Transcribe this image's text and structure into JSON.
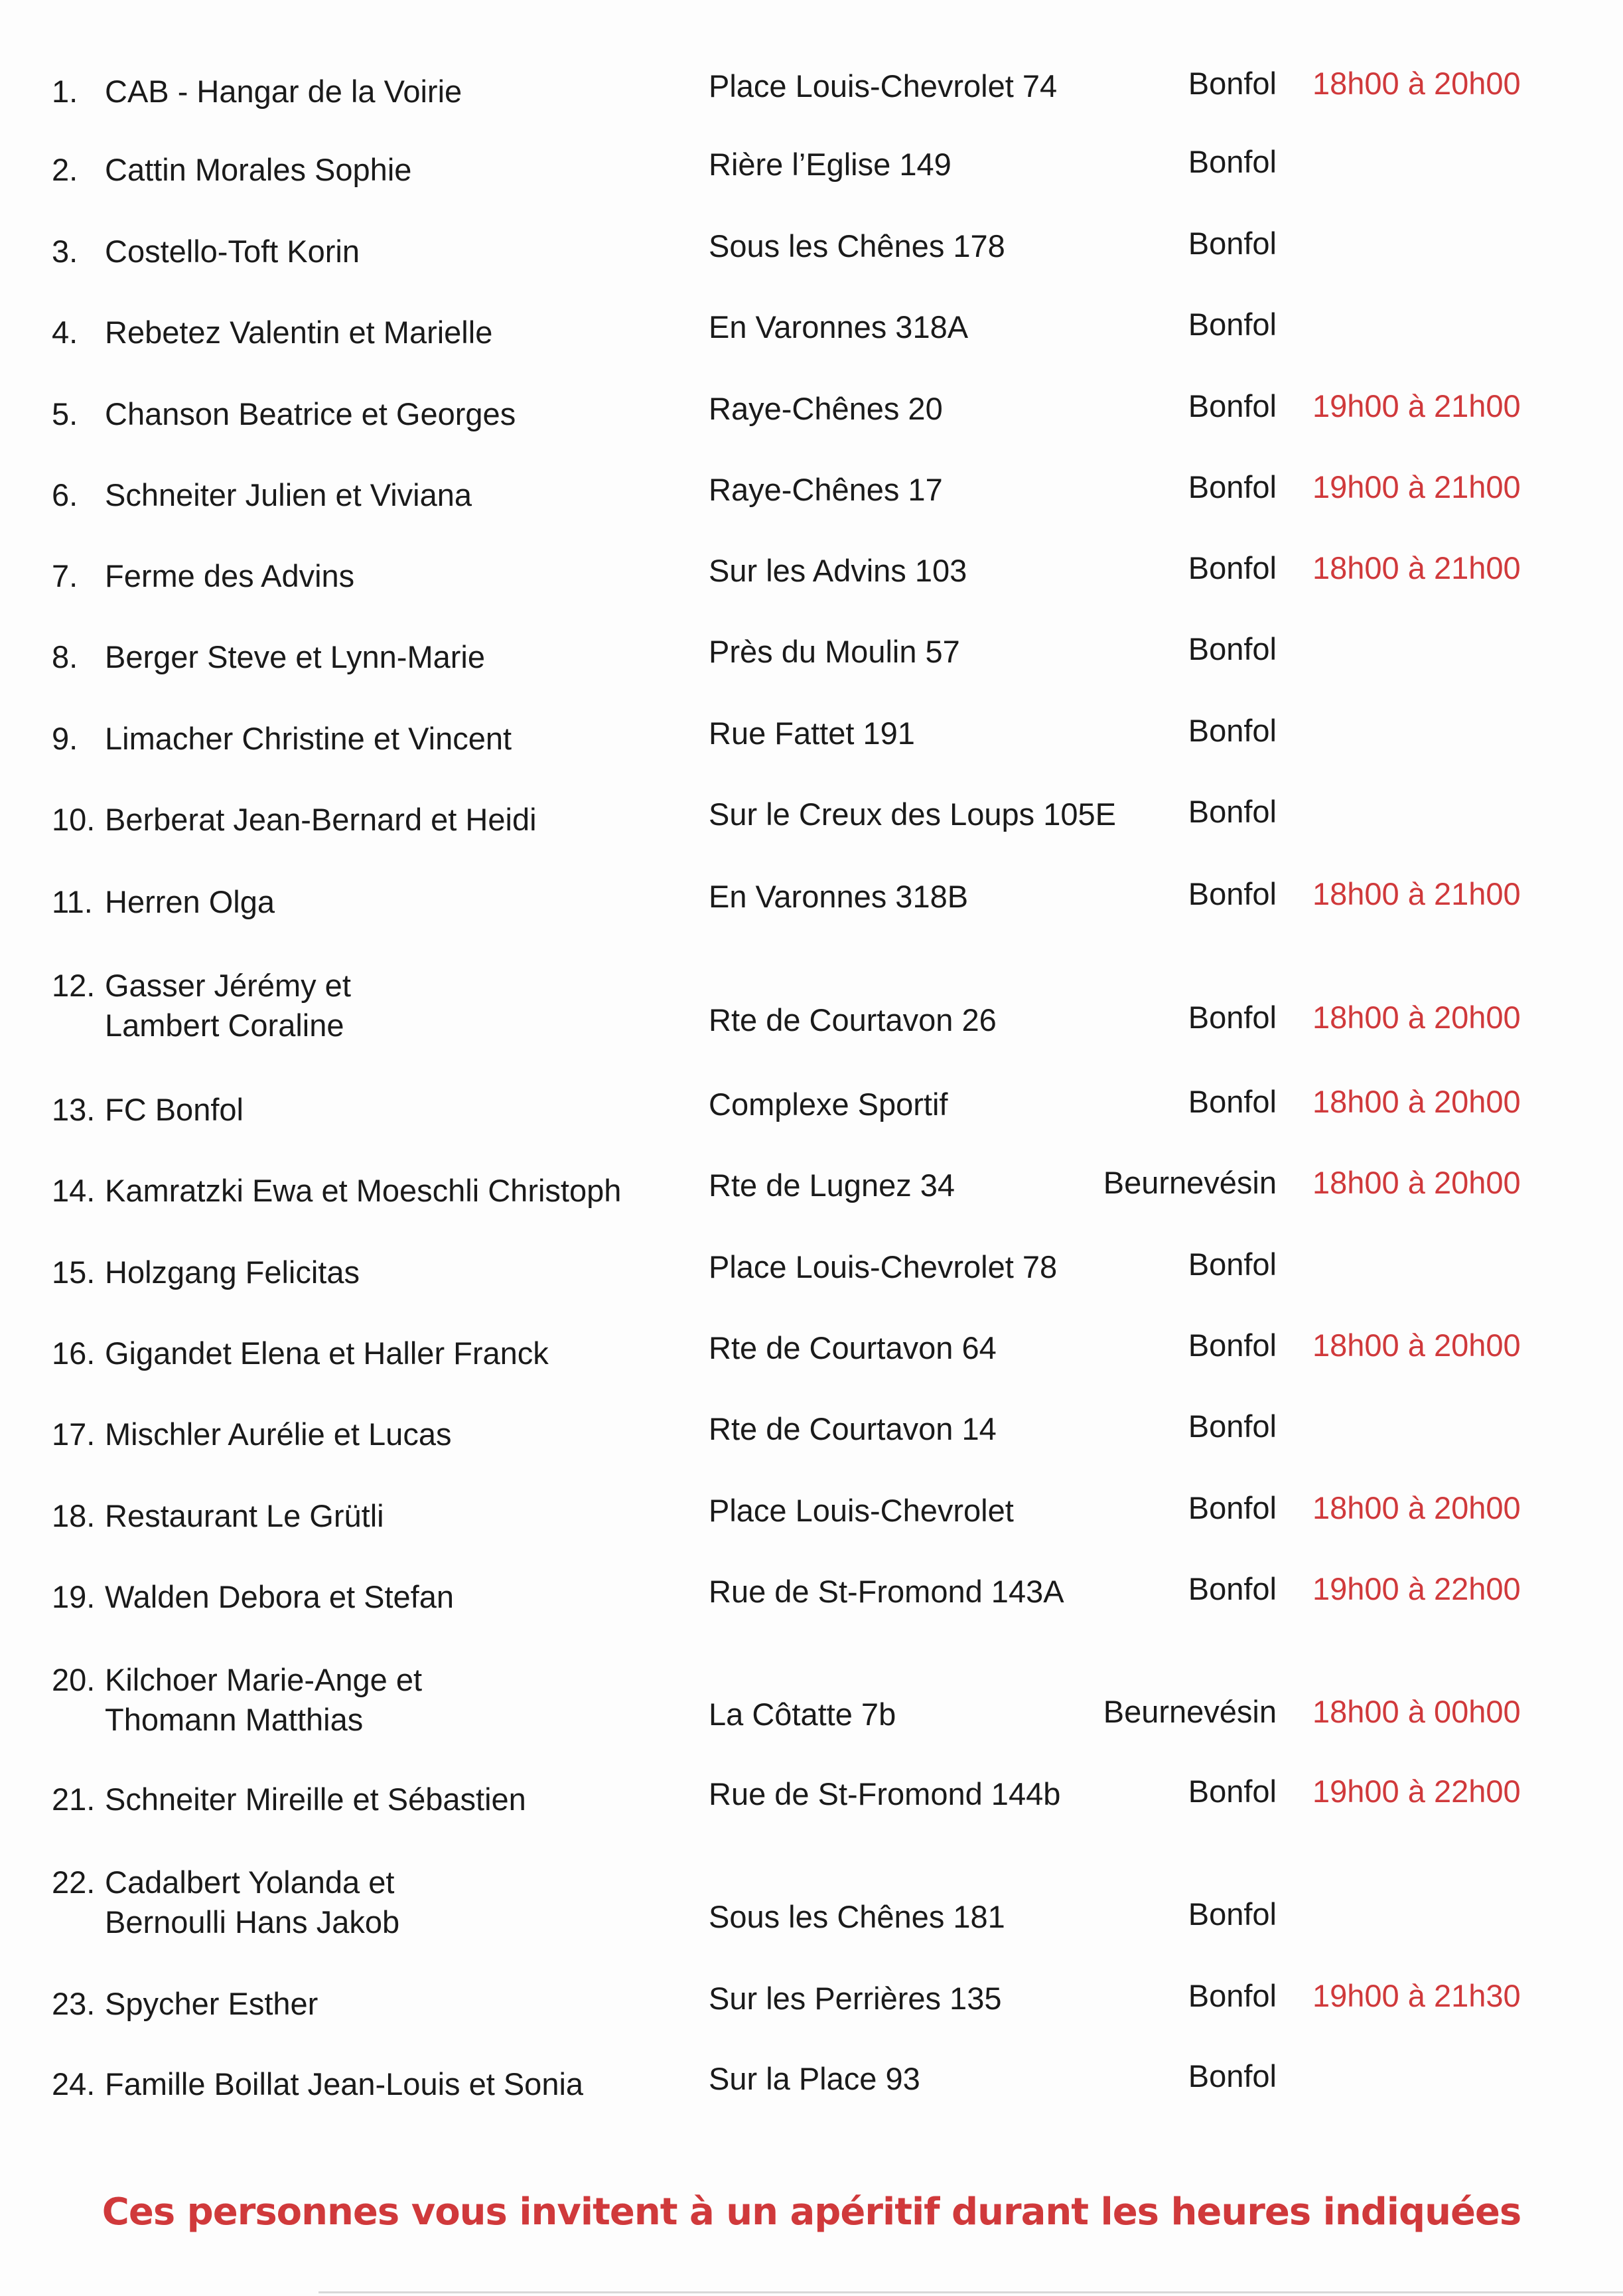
{
  "colors": {
    "text": "#1a1a1a",
    "accent_red": "#d0393b"
  },
  "entries": [
    {
      "num": "1.",
      "name": [
        "CAB - Hangar de la Voirie"
      ],
      "address": "Place Louis-Chevrolet 74",
      "town": "Bonfol",
      "time": "18h00 à 20h00"
    },
    {
      "num": "2.",
      "name": [
        "Cattin Morales Sophie"
      ],
      "address": "Rière l’Eglise 149",
      "town": "Bonfol",
      "time": ""
    },
    {
      "num": "3.",
      "name": [
        "Costello-Toft Korin"
      ],
      "address": "Sous les Chênes 178",
      "town": "Bonfol",
      "time": ""
    },
    {
      "num": "4.",
      "name": [
        "Rebetez Valentin et Marielle"
      ],
      "address": "En Varonnes 318A",
      "town": "Bonfol",
      "time": ""
    },
    {
      "num": "5.",
      "name": [
        "Chanson Beatrice et Georges"
      ],
      "address": "Raye-Chênes 20",
      "town": "Bonfol",
      "time": "19h00 à 21h00"
    },
    {
      "num": "6.",
      "name": [
        "Schneiter Julien et Viviana"
      ],
      "address": "Raye-Chênes 17",
      "town": "Bonfol",
      "time": "19h00 à 21h00"
    },
    {
      "num": "7.",
      "name": [
        "Ferme des Advins"
      ],
      "address": "Sur les Advins 103",
      "town": "Bonfol",
      "time": "18h00 à 21h00"
    },
    {
      "num": "8.",
      "name": [
        "Berger Steve et Lynn-Marie"
      ],
      "address": "Près du Moulin 57",
      "town": "Bonfol",
      "time": ""
    },
    {
      "num": "9.",
      "name": [
        "Limacher Christine et Vincent"
      ],
      "address": "Rue Fattet 191",
      "town": "Bonfol",
      "time": ""
    },
    {
      "num": "10.",
      "name": [
        "Berberat Jean-Bernard et Heidi"
      ],
      "address": "Sur le Creux des Loups 105E",
      "town": "Bonfol",
      "time": ""
    },
    {
      "num": "11.",
      "name": [
        "Herren Olga"
      ],
      "address": "En Varonnes 318B",
      "town": "Bonfol",
      "time": "18h00 à 21h00"
    },
    {
      "num": "12.",
      "name": [
        "Gasser Jérémy et",
        "Lambert Coraline"
      ],
      "address": "Rte de Courtavon 26",
      "town": "Bonfol",
      "time": "18h00 à 20h00"
    },
    {
      "num": "13.",
      "name": [
        "FC Bonfol"
      ],
      "address": "Complexe Sportif",
      "town": "Bonfol",
      "time": "18h00 à 20h00"
    },
    {
      "num": "14.",
      "name": [
        "Kamratzki Ewa et Moeschli Christoph"
      ],
      "address": "Rte de Lugnez 34",
      "town": "Beurnevésin",
      "time": "18h00 à 20h00"
    },
    {
      "num": "15.",
      "name": [
        "Holzgang Felicitas"
      ],
      "address": "Place Louis-Chevrolet 78",
      "town": "Bonfol",
      "time": ""
    },
    {
      "num": "16.",
      "name": [
        "Gigandet Elena et Haller Franck"
      ],
      "address": "Rte de Courtavon 64",
      "town": "Bonfol",
      "time": "18h00 à 20h00"
    },
    {
      "num": "17.",
      "name": [
        "Mischler Aurélie et Lucas"
      ],
      "address": "Rte de Courtavon 14",
      "town": "Bonfol",
      "time": ""
    },
    {
      "num": "18.",
      "name": [
        "Restaurant Le Grütli"
      ],
      "address": "Place Louis-Chevrolet",
      "town": "Bonfol",
      "time": "18h00 à 20h00"
    },
    {
      "num": "19.",
      "name": [
        "Walden Debora et Stefan"
      ],
      "address": "Rue de St-Fromond 143A",
      "town": "Bonfol",
      "time": "19h00 à 22h00"
    },
    {
      "num": "20.",
      "name": [
        "Kilchoer Marie-Ange et",
        "Thomann Matthias"
      ],
      "address": "La Côtatte 7b",
      "town": "Beurnevésin",
      "time": "18h00 à 00h00"
    },
    {
      "num": "21.",
      "name": [
        "Schneiter Mireille et Sébastien"
      ],
      "address": "Rue de St-Fromond 144b",
      "town": "Bonfol",
      "time": "19h00 à 22h00"
    },
    {
      "num": "22.",
      "name": [
        "Cadalbert Yolanda et",
        "Bernoulli Hans Jakob"
      ],
      "address": "Sous les Chênes 181",
      "town": "Bonfol",
      "time": ""
    },
    {
      "num": "23.",
      "name": [
        "Spycher Esther"
      ],
      "address": "Sur les Perrières 135",
      "town": "Bonfol",
      "time": "19h00 à 21h30"
    },
    {
      "num": "24.",
      "name": [
        "Famille Boillat Jean-Louis et Sonia"
      ],
      "address": "Sur la Place 93",
      "town": "Bonfol",
      "time": ""
    }
  ],
  "footer": "Ces personnes vous invitent à un apéritif durant les heures indiquées"
}
